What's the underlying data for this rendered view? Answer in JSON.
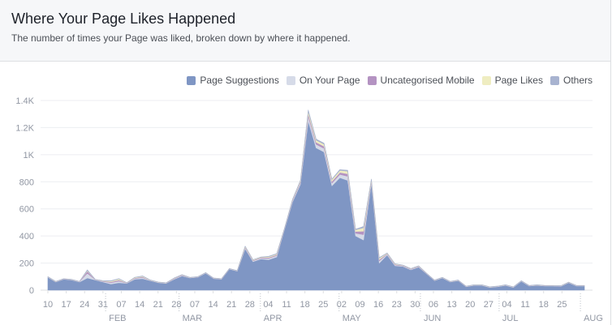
{
  "header": {
    "title": "Where Your Page Likes Happened",
    "subtitle": "The number of times your Page was liked, broken down by where it happened."
  },
  "chart_data": {
    "type": "area",
    "stacked": true,
    "title": "",
    "xlabel": "",
    "ylabel": "",
    "x_range": [
      "Jan 10",
      "Jul 31"
    ],
    "ylim": [
      0,
      1400
    ],
    "grid": true,
    "legend_position": "top-right",
    "y_ticks": [
      "0",
      "200",
      "400",
      "600",
      "800",
      "1K",
      "1.2K",
      "1.4K"
    ],
    "x_ticks": [
      "10",
      "17",
      "24",
      "31",
      "07",
      "14",
      "21",
      "28",
      "07",
      "14",
      "21",
      "28",
      "04",
      "11",
      "18",
      "25",
      "02",
      "09",
      "16",
      "23",
      "30",
      "06",
      "13",
      "20",
      "27",
      "04",
      "11",
      "18",
      "25"
    ],
    "months": [
      "FEB",
      "MAR",
      "APR",
      "MAY",
      "JUN",
      "JUL",
      "AUG"
    ],
    "series": [
      {
        "name": "Page Suggestions",
        "color": "#7f96c4",
        "values": [
          95,
          60,
          80,
          75,
          60,
          90,
          75,
          60,
          45,
          55,
          50,
          80,
          85,
          70,
          55,
          50,
          80,
          105,
          90,
          95,
          125,
          85,
          80,
          155,
          140,
          305,
          210,
          230,
          225,
          245,
          450,
          650,
          780,
          1250,
          1050,
          1020,
          770,
          830,
          810,
          400,
          370,
          790,
          200,
          260,
          180,
          175,
          150,
          170,
          120,
          70,
          90,
          60,
          70,
          25,
          35,
          35,
          20,
          25,
          35,
          20,
          65,
          30,
          35,
          30,
          30,
          28,
          55,
          30,
          30
        ]
      },
      {
        "name": "On Your Page",
        "color": "#d6dbe8",
        "values": [
          2,
          2,
          2,
          2,
          2,
          35,
          2,
          4,
          10,
          12,
          2,
          6,
          8,
          2,
          2,
          2,
          4,
          4,
          2,
          2,
          2,
          2,
          2,
          2,
          2,
          8,
          6,
          6,
          10,
          10,
          4,
          8,
          12,
          32,
          26,
          26,
          20,
          24,
          30,
          20,
          40,
          12,
          16,
          6,
          6,
          4,
          4,
          4,
          2,
          2,
          2,
          2,
          2,
          2,
          2,
          2,
          2,
          2,
          2,
          2,
          2,
          2,
          2,
          2,
          2,
          2,
          2,
          2,
          2
        ]
      },
      {
        "name": "Uncategorised Mobile",
        "color": "#b493c2",
        "values": [
          1,
          1,
          1,
          1,
          1,
          15,
          1,
          3,
          6,
          8,
          1,
          4,
          5,
          1,
          1,
          1,
          3,
          3,
          1,
          1,
          1,
          1,
          1,
          1,
          1,
          5,
          4,
          4,
          6,
          6,
          3,
          5,
          8,
          20,
          16,
          16,
          13,
          15,
          19,
          13,
          25,
          8,
          10,
          4,
          4,
          3,
          3,
          3,
          1,
          1,
          1,
          1,
          1,
          1,
          1,
          1,
          1,
          1,
          1,
          1,
          1,
          1,
          1,
          1,
          1,
          1,
          1,
          1,
          1
        ]
      },
      {
        "name": "Page Likes",
        "color": "#efedc1",
        "values": [
          1,
          1,
          1,
          1,
          1,
          5,
          1,
          2,
          6,
          8,
          1,
          4,
          5,
          1,
          1,
          1,
          2,
          2,
          1,
          1,
          1,
          1,
          1,
          1,
          1,
          5,
          4,
          4,
          6,
          6,
          2,
          5,
          8,
          20,
          16,
          16,
          13,
          15,
          19,
          13,
          25,
          8,
          10,
          4,
          4,
          2,
          2,
          2,
          1,
          1,
          1,
          1,
          1,
          1,
          1,
          1,
          1,
          1,
          1,
          1,
          1,
          1,
          1,
          1,
          1,
          1,
          1,
          1,
          1
        ]
      },
      {
        "name": "Others",
        "color": "#a8b3d0",
        "values": [
          1,
          1,
          1,
          1,
          1,
          5,
          1,
          1,
          3,
          2,
          1,
          1,
          2,
          1,
          1,
          1,
          1,
          1,
          1,
          1,
          1,
          1,
          1,
          1,
          1,
          2,
          1,
          1,
          3,
          3,
          1,
          2,
          2,
          8,
          7,
          7,
          4,
          6,
          7,
          4,
          10,
          2,
          4,
          1,
          1,
          1,
          1,
          1,
          1,
          1,
          1,
          1,
          1,
          1,
          1,
          1,
          1,
          1,
          1,
          1,
          1,
          1,
          1,
          1,
          1,
          1,
          1,
          1,
          1
        ]
      }
    ]
  }
}
